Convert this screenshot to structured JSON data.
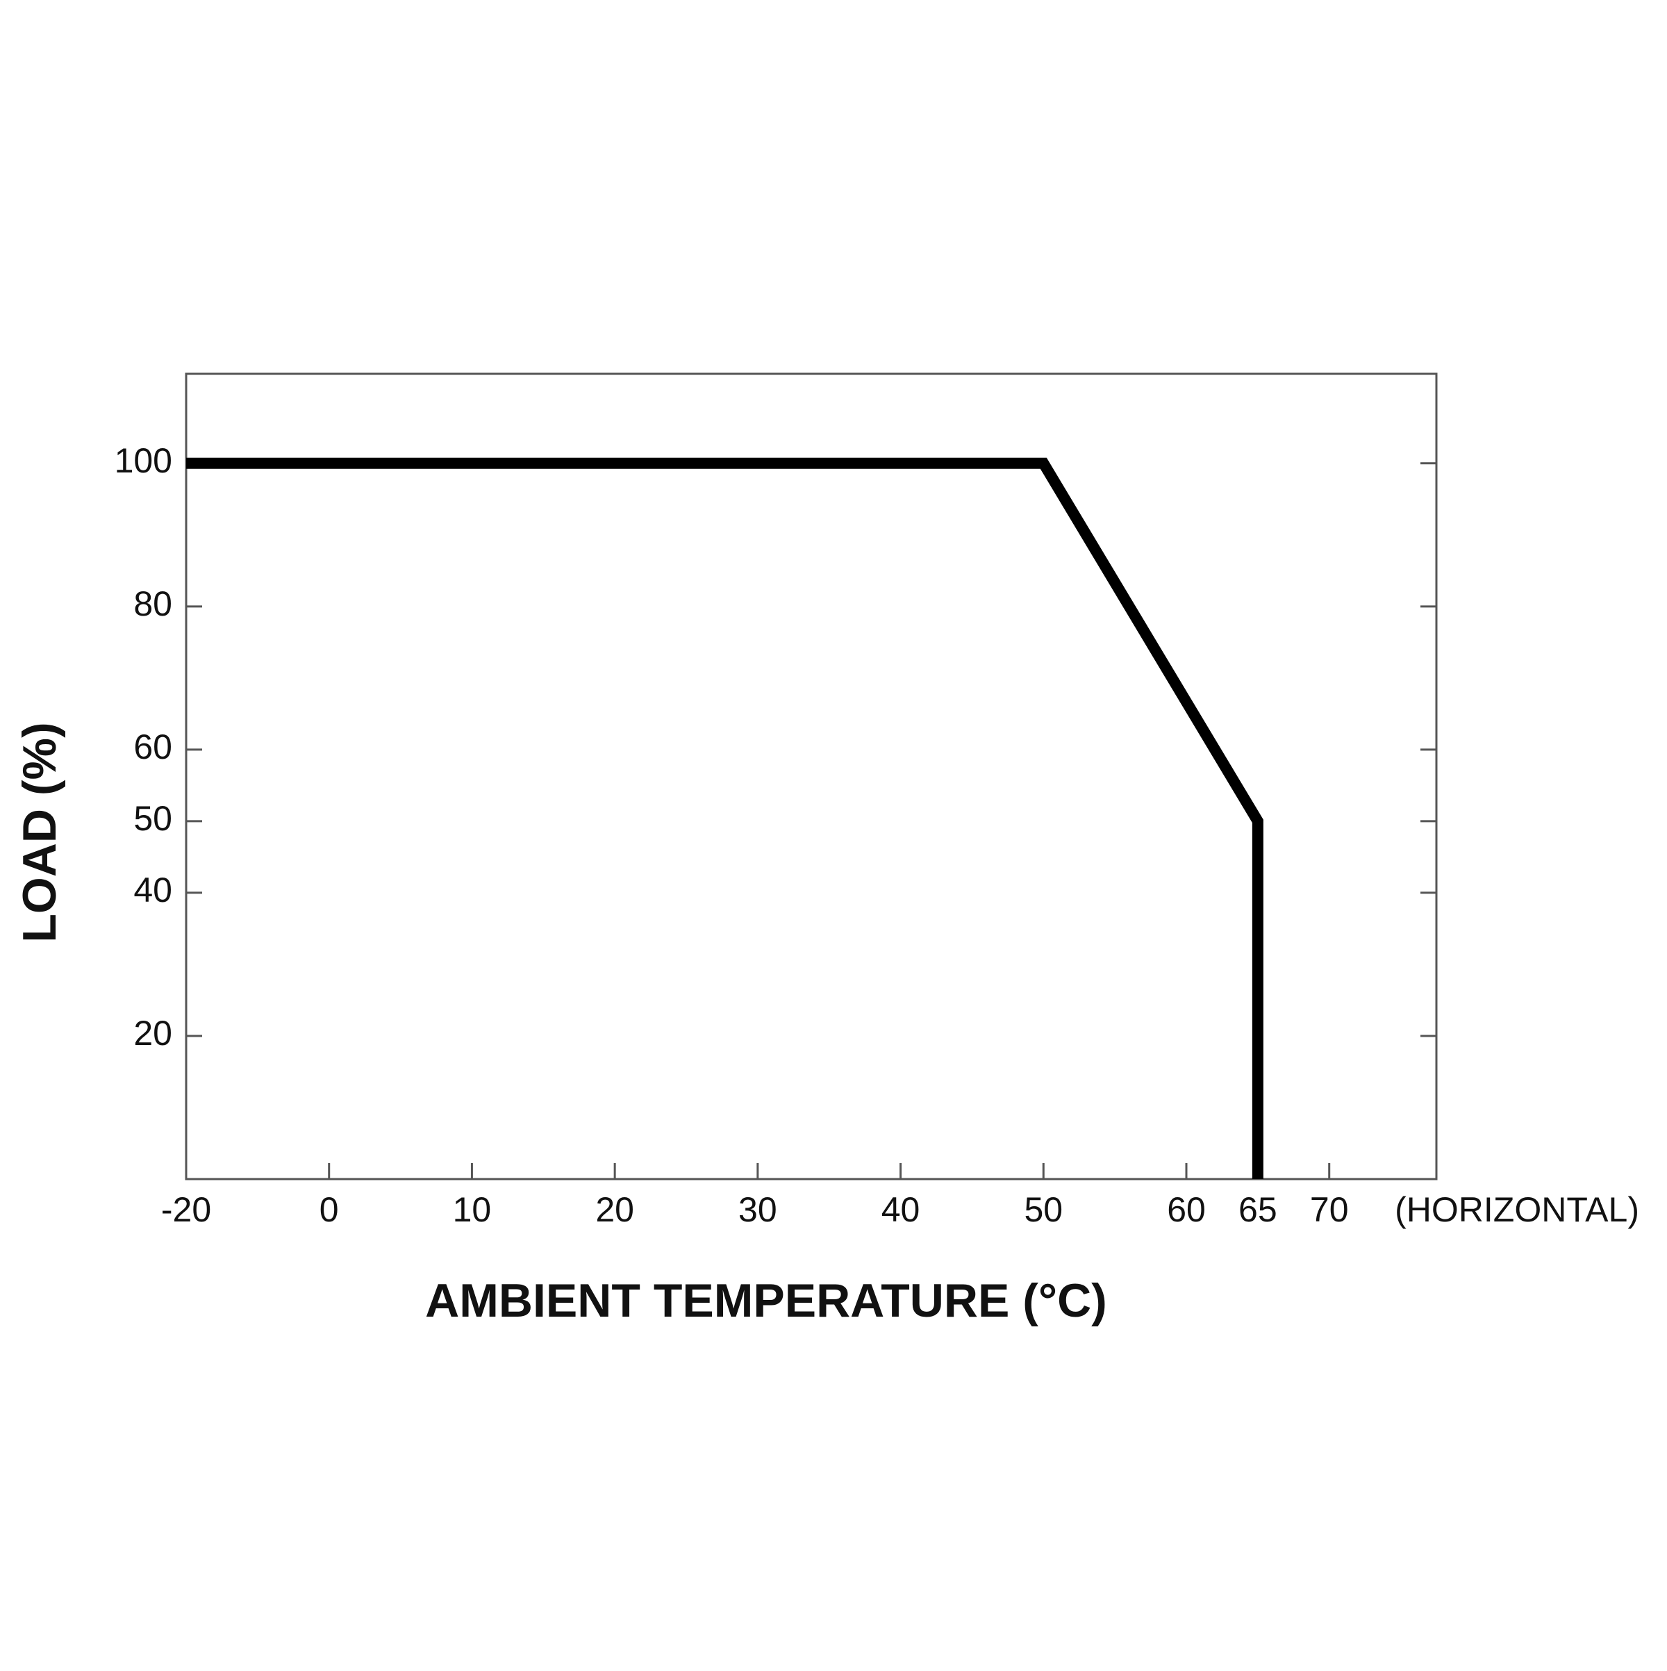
{
  "chart_data": {
    "type": "line",
    "x_label": "AMBIENT TEMPERATURE (°C)",
    "y_label": "LOAD (%)",
    "annotation": "(HORIZONTAL)",
    "x": [
      -20,
      50,
      65,
      65
    ],
    "series": [
      {
        "color": "#000000",
        "values": [
          100,
          100,
          50,
          0
        ]
      }
    ],
    "xlim": [
      -20,
      77.5
    ],
    "xticks": [
      -20,
      0,
      10,
      20,
      30,
      40,
      50,
      60,
      65,
      70
    ],
    "ylim": [
      0,
      112.5
    ],
    "yticks": [
      20,
      40,
      50,
      60,
      80,
      100
    ]
  }
}
